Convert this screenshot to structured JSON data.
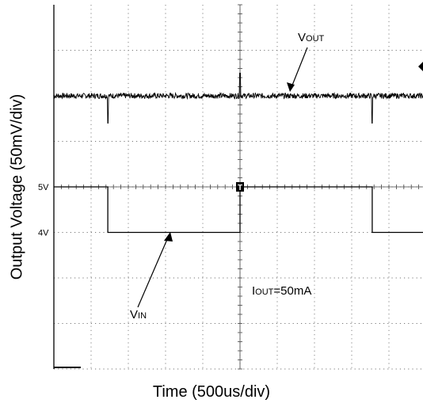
{
  "chart_data": {
    "type": "line",
    "xlabel": "Time (500us/div)",
    "ylabel": "Output Voltage (50mV/div)",
    "grid": true,
    "x_divisions": 10,
    "y_divisions": 8,
    "series": [
      {
        "name": "VOUT",
        "label_main": "V",
        "label_sub": "OUT",
        "baseline_div": 6.0,
        "noise_div": 0.06,
        "spikes": [
          {
            "t_div": 1.45,
            "depth_div": -0.6
          },
          {
            "t_div": 5.0,
            "depth_div": 0.5
          },
          {
            "t_div": 8.55,
            "depth_div": -0.6
          }
        ]
      },
      {
        "name": "VIN",
        "label_main": "V",
        "label_sub": "IN",
        "levels_V": [
          5,
          4
        ],
        "level_labels": [
          "5V",
          "4V"
        ],
        "points": [
          {
            "t_div": 0.0,
            "v": 5
          },
          {
            "t_div": 1.45,
            "v": 5
          },
          {
            "t_div": 1.45,
            "v": 4
          },
          {
            "t_div": 5.0,
            "v": 4
          },
          {
            "t_div": 5.0,
            "v": 5
          },
          {
            "t_div": 8.55,
            "v": 5
          },
          {
            "t_div": 8.55,
            "v": 4
          },
          {
            "t_div": 10.0,
            "v": 4
          }
        ]
      }
    ],
    "annotations": [
      {
        "text_main": "I",
        "text_sub": "OUT",
        "text_rest": "=50mA"
      }
    ]
  }
}
